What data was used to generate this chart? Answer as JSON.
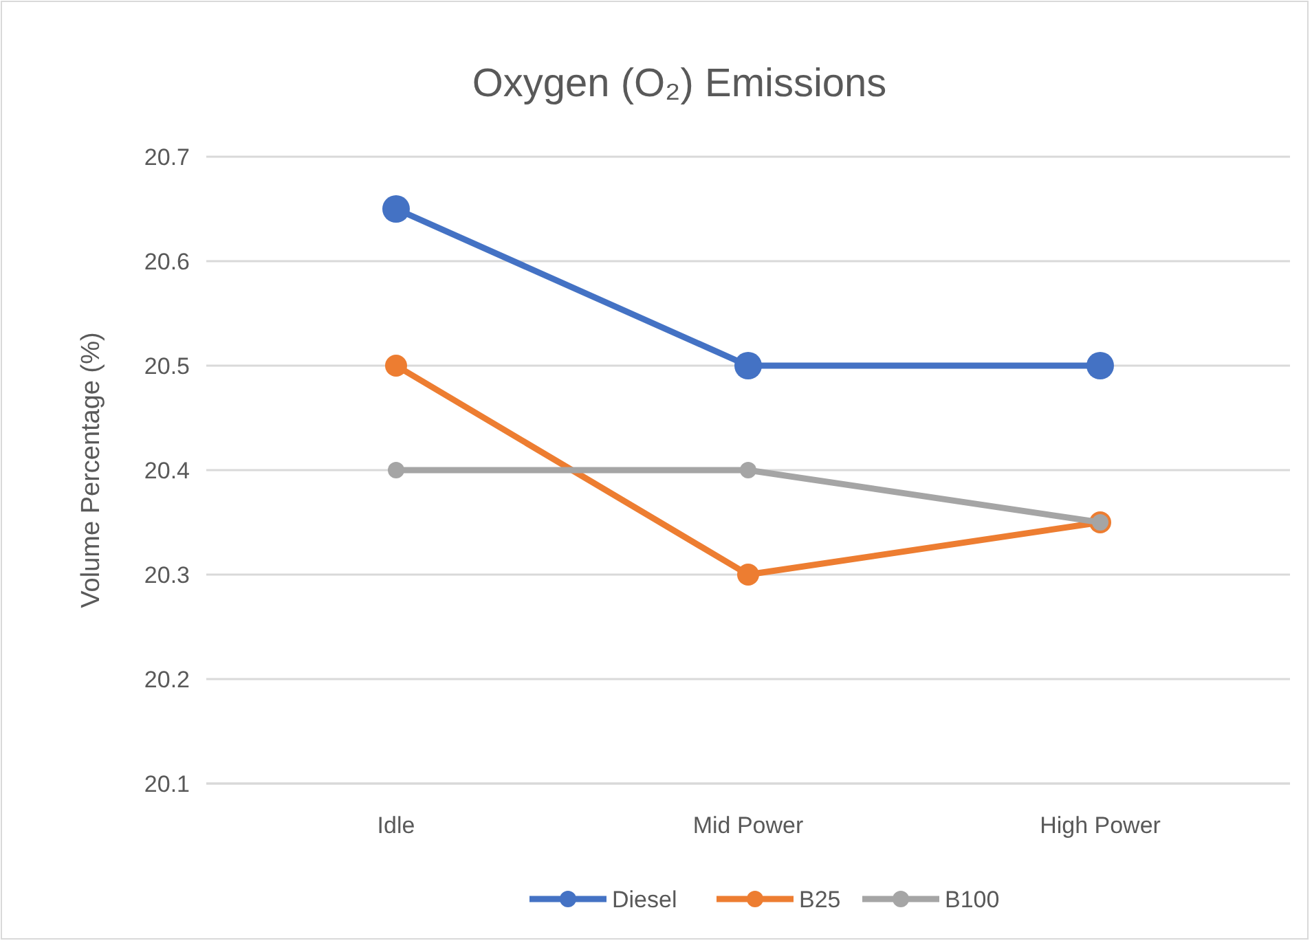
{
  "chart_data": {
    "type": "line",
    "title": "Oxygen (O₂) Emissions",
    "ylabel": "Volume Percentage (%)",
    "categories": [
      "Idle",
      "Mid Power",
      "High Power"
    ],
    "series": [
      {
        "name": "Diesel",
        "color": "#4472c4",
        "values": [
          20.65,
          20.5,
          20.5
        ]
      },
      {
        "name": "B25",
        "color": "#ed7d31",
        "values": [
          20.5,
          20.3,
          20.35
        ]
      },
      {
        "name": "B100",
        "color": "#a5a5a5",
        "values": [
          20.4,
          20.4,
          20.35
        ]
      }
    ],
    "ylim": [
      20.1,
      20.7
    ],
    "yticks": [
      20.1,
      20.2,
      20.3,
      20.4,
      20.5,
      20.6,
      20.7
    ],
    "grid": "y",
    "legend": "bottom",
    "marker": "circle",
    "line_style": "solid"
  }
}
